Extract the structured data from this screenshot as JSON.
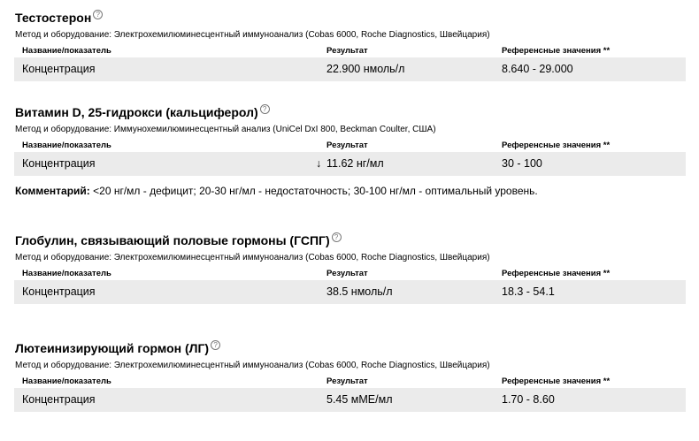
{
  "columns": {
    "name": "Название/показатель",
    "result": "Результат",
    "ref": "Референсные значения **"
  },
  "help_icon": "question-circle-icon",
  "sections": [
    {
      "title": "Тестостерон",
      "method": "Метод и оборудование: Электрохемилюминесцентный иммуноанализ (Cobas 6000, Roche Diagnostics, Швейцария)",
      "rows": [
        {
          "name": "Концентрация",
          "result": "22.900 нмоль/л",
          "ref": "8.640 - 29.000"
        }
      ]
    },
    {
      "title": "Витамин D, 25-гидрокси (кальциферол)",
      "method": "Метод и оборудование: Иммунохемилюминесцентный анализ (UniCel DxI 800, Beckman Coulter, США)",
      "rows": [
        {
          "name": "Концентрация",
          "flag": "↓",
          "result": "11.62 нг/мл",
          "ref": "30 - 100"
        }
      ],
      "comment_label": "Комментарий:",
      "comment": " <20 нг/мл - дефицит; 20-30 нг/мл - недостаточность; 30-100 нг/мл - оптимальный уровень."
    },
    {
      "title": "Глобулин, связывающий половые гормоны (ГСПГ)",
      "method": "Метод и оборудование: Электрохемилюминесцентный иммуноанализ (Cobas 6000, Roche Diagnostics, Швейцария)",
      "rows": [
        {
          "name": "Концентрация",
          "result": "38.5 нмоль/л",
          "ref": "18.3 - 54.1"
        }
      ]
    },
    {
      "title": "Лютеинизирующий гормон (ЛГ)",
      "method": "Метод и оборудование: Электрохемилюминесцентный иммуноанализ (Cobas 6000, Roche Diagnostics, Швейцария)",
      "rows": [
        {
          "name": "Концентрация",
          "result": "5.45 мМЕ/мл",
          "ref": "1.70 - 8.60"
        }
      ]
    }
  ]
}
